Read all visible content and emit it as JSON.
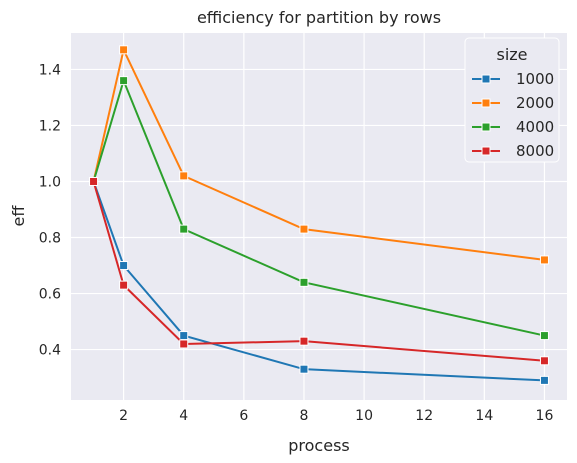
{
  "chart_data": {
    "type": "line",
    "title": "efficiency for partition by rows",
    "xlabel": "process",
    "ylabel": "eff",
    "xlim": [
      0.25,
      16.75
    ],
    "ylim": [
      0.22,
      1.53
    ],
    "x_ticks": [
      2,
      4,
      6,
      8,
      10,
      12,
      14,
      16
    ],
    "y_ticks": [
      0.4,
      0.6,
      0.8,
      1.0,
      1.2,
      1.4
    ],
    "grid": true,
    "legend_title": "size",
    "legend_position": "top-right",
    "x": [
      1,
      2,
      4,
      8,
      16
    ],
    "series": [
      {
        "name": "1000",
        "color": "#1f77b4",
        "values": [
          1.0,
          0.7,
          0.45,
          0.33,
          0.29
        ]
      },
      {
        "name": "2000",
        "color": "#ff7f0e",
        "values": [
          1.0,
          1.47,
          1.02,
          0.83,
          0.72
        ]
      },
      {
        "name": "4000",
        "color": "#2ca02c",
        "values": [
          1.0,
          1.36,
          0.83,
          0.64,
          0.45
        ]
      },
      {
        "name": "8000",
        "color": "#d62728",
        "values": [
          1.0,
          0.63,
          0.42,
          0.43,
          0.36
        ]
      }
    ]
  }
}
